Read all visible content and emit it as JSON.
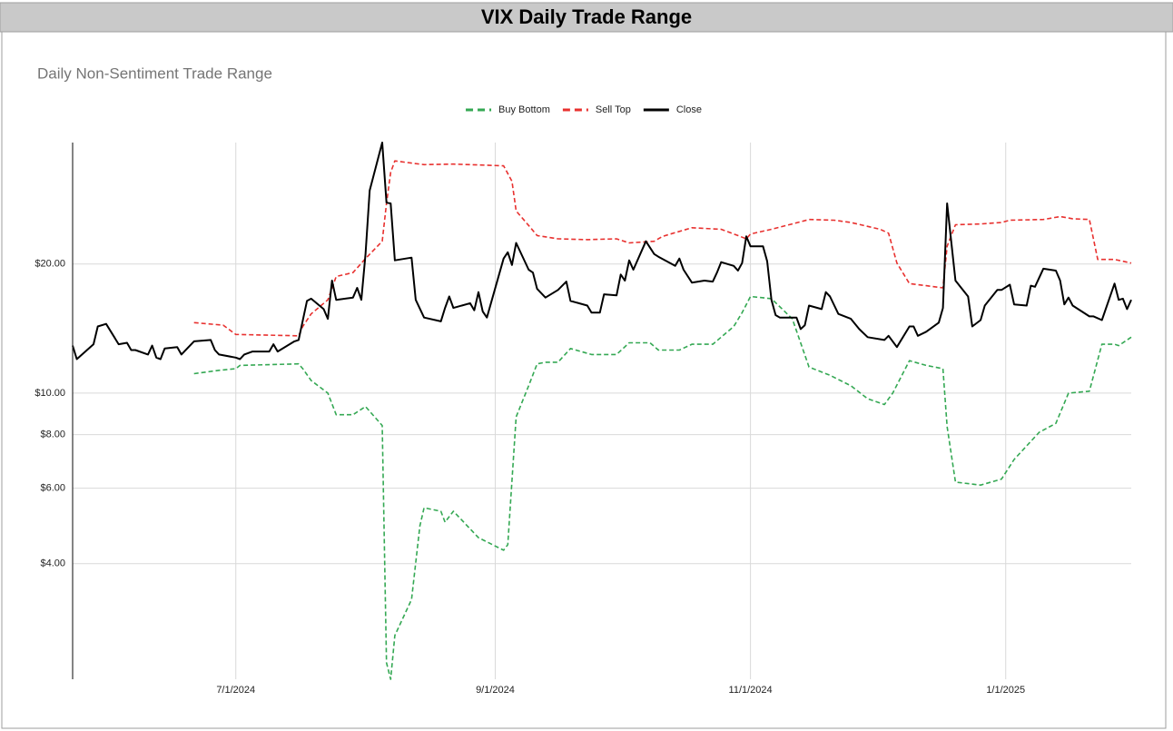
{
  "chart_data": {
    "type": "line",
    "title": "VIX Daily Trade Range",
    "subtitle": "Daily Non-Sentiment Trade Range",
    "log_scale": true,
    "grid": true,
    "legend": "top",
    "xlim": [
      "2024-05-23",
      "2025-01-31"
    ],
    "xticks": [
      {
        "value": "2024-07-01",
        "label": "7/1/2024"
      },
      {
        "value": "2024-09-01",
        "label": "9/1/2024"
      },
      {
        "value": "2024-11-01",
        "label": "11/1/2024"
      },
      {
        "value": "2025-01-01",
        "label": "1/1/2025"
      }
    ],
    "ylim": [
      2.15,
      38.4
    ],
    "yticks": [
      {
        "value": 4,
        "label": "$4.00"
      },
      {
        "value": 6,
        "label": "$6.00"
      },
      {
        "value": 8,
        "label": "$8.00"
      },
      {
        "value": 10,
        "label": "$10.00"
      },
      {
        "value": 20,
        "label": "$20.00"
      }
    ],
    "series": [
      {
        "name": "Buy Bottom",
        "color": "#34a853",
        "line_style": "dashed",
        "x": [
          "2024-06-21",
          "2024-06-27",
          "2024-07-01",
          "2024-07-02",
          "2024-07-16",
          "2024-07-17",
          "2024-07-19",
          "2024-07-23",
          "2024-07-25",
          "2024-07-29",
          "2024-08-01",
          "2024-08-05",
          "2024-08-06",
          "2024-08-07",
          "2024-08-08",
          "2024-08-12",
          "2024-08-14",
          "2024-08-15",
          "2024-08-19",
          "2024-08-20",
          "2024-08-22",
          "2024-08-28",
          "2024-09-03",
          "2024-09-04",
          "2024-09-06",
          "2024-09-09",
          "2024-09-11",
          "2024-09-13",
          "2024-09-16",
          "2024-09-19",
          "2024-09-24",
          "2024-09-30",
          "2024-10-03",
          "2024-10-08",
          "2024-10-10",
          "2024-10-15",
          "2024-10-18",
          "2024-10-23",
          "2024-10-28",
          "2024-10-30",
          "2024-11-01",
          "2024-11-06",
          "2024-11-11",
          "2024-11-15",
          "2024-11-20",
          "2024-11-25",
          "2024-11-29",
          "2024-12-03",
          "2024-12-05",
          "2024-12-09",
          "2024-12-13",
          "2024-12-17",
          "2024-12-18",
          "2024-12-20",
          "2024-12-26",
          "2024-12-31",
          "2025-01-03",
          "2025-01-09",
          "2025-01-13",
          "2025-01-16",
          "2025-01-21",
          "2025-01-24",
          "2025-01-27",
          "2025-01-28",
          "2025-01-31"
        ],
        "values": [
          11.1,
          11.3,
          11.4,
          11.6,
          11.7,
          11.4,
          10.7,
          10.0,
          8.9,
          8.9,
          9.3,
          8.4,
          2.35,
          2.15,
          2.72,
          3.3,
          4.9,
          5.4,
          5.3,
          5.0,
          5.3,
          4.6,
          4.3,
          4.43,
          8.8,
          10.4,
          11.7,
          11.8,
          11.8,
          12.7,
          12.3,
          12.3,
          13.1,
          13.1,
          12.6,
          12.6,
          13.0,
          13.0,
          14.3,
          15.4,
          16.8,
          16.6,
          14.9,
          11.5,
          11.0,
          10.4,
          9.7,
          9.4,
          10.0,
          11.9,
          11.6,
          11.4,
          8.35,
          6.2,
          6.1,
          6.3,
          7.0,
          8.1,
          8.5,
          10.0,
          10.1,
          13.0,
          13.0,
          12.9,
          13.5
        ]
      },
      {
        "name": "Sell Top",
        "color": "#e8312f",
        "line_style": "dashed",
        "x": [
          "2024-06-21",
          "2024-06-28",
          "2024-07-01",
          "2024-07-16",
          "2024-07-17",
          "2024-07-19",
          "2024-07-23",
          "2024-07-25",
          "2024-07-29",
          "2024-08-01",
          "2024-08-05",
          "2024-08-06",
          "2024-08-07",
          "2024-08-08",
          "2024-08-12",
          "2024-08-15",
          "2024-08-22",
          "2024-09-03",
          "2024-09-05",
          "2024-09-06",
          "2024-09-09",
          "2024-09-11",
          "2024-09-16",
          "2024-09-23",
          "2024-09-30",
          "2024-10-03",
          "2024-10-09",
          "2024-10-11",
          "2024-10-18",
          "2024-10-25",
          "2024-10-29",
          "2024-10-31",
          "2024-11-01",
          "2024-11-06",
          "2024-11-11",
          "2024-11-15",
          "2024-11-21",
          "2024-11-25",
          "2024-12-02",
          "2024-12-04",
          "2024-12-06",
          "2024-12-09",
          "2024-12-13",
          "2024-12-17",
          "2024-12-18",
          "2024-12-20",
          "2024-12-26",
          "2024-12-31",
          "2025-01-02",
          "2025-01-10",
          "2025-01-14",
          "2025-01-17",
          "2025-01-21",
          "2025-01-23",
          "2025-01-27",
          "2025-01-30",
          "2025-01-31"
        ],
        "values": [
          14.6,
          14.4,
          13.7,
          13.6,
          14.3,
          15.3,
          16.5,
          18.7,
          19.1,
          20.6,
          22.6,
          27.7,
          32.7,
          34.8,
          34.4,
          34.1,
          34.2,
          33.9,
          31.2,
          26.6,
          24.6,
          23.3,
          22.9,
          22.8,
          22.9,
          22.4,
          22.6,
          23.2,
          24.3,
          24.1,
          23.3,
          22.9,
          23.5,
          24.1,
          24.8,
          25.4,
          25.3,
          25.0,
          24.1,
          23.6,
          20.1,
          18.0,
          17.8,
          17.6,
          22.0,
          24.7,
          24.8,
          25.0,
          25.3,
          25.4,
          25.8,
          25.5,
          25.4,
          20.5,
          20.5,
          20.2,
          20.1
        ]
      },
      {
        "name": "Close",
        "color": "#000000",
        "line_style": "solid",
        "x": [
          "2024-05-23",
          "2024-05-24",
          "2024-05-28",
          "2024-05-29",
          "2024-05-31",
          "2024-06-03",
          "2024-06-05",
          "2024-06-06",
          "2024-06-07",
          "2024-06-10",
          "2024-06-11",
          "2024-06-12",
          "2024-06-13",
          "2024-06-14",
          "2024-06-17",
          "2024-06-18",
          "2024-06-21",
          "2024-06-25",
          "2024-06-26",
          "2024-06-27",
          "2024-07-01",
          "2024-07-02",
          "2024-07-03",
          "2024-07-05",
          "2024-07-09",
          "2024-07-10",
          "2024-07-11",
          "2024-07-15",
          "2024-07-16",
          "2024-07-18",
          "2024-07-19",
          "2024-07-22",
          "2024-07-23",
          "2024-07-24",
          "2024-07-25",
          "2024-07-29",
          "2024-07-30",
          "2024-07-31",
          "2024-08-01",
          "2024-08-02",
          "2024-08-05",
          "2024-08-06",
          "2024-08-07",
          "2024-08-08",
          "2024-08-12",
          "2024-08-13",
          "2024-08-15",
          "2024-08-19",
          "2024-08-20",
          "2024-08-21",
          "2024-08-22",
          "2024-08-26",
          "2024-08-27",
          "2024-08-28",
          "2024-08-29",
          "2024-08-30",
          "2024-09-03",
          "2024-09-04",
          "2024-09-05",
          "2024-09-06",
          "2024-09-09",
          "2024-09-10",
          "2024-09-11",
          "2024-09-13",
          "2024-09-16",
          "2024-09-18",
          "2024-09-19",
          "2024-09-23",
          "2024-09-24",
          "2024-09-26",
          "2024-09-27",
          "2024-09-30",
          "2024-10-01",
          "2024-10-02",
          "2024-10-03",
          "2024-10-04",
          "2024-10-07",
          "2024-10-09",
          "2024-10-10",
          "2024-10-14",
          "2024-10-15",
          "2024-10-16",
          "2024-10-18",
          "2024-10-21",
          "2024-10-23",
          "2024-10-24",
          "2024-10-25",
          "2024-10-28",
          "2024-10-29",
          "2024-10-30",
          "2024-10-31",
          "2024-11-01",
          "2024-11-04",
          "2024-11-05",
          "2024-11-06",
          "2024-11-07",
          "2024-11-08",
          "2024-11-12",
          "2024-11-13",
          "2024-11-14",
          "2024-11-15",
          "2024-11-18",
          "2024-11-19",
          "2024-11-20",
          "2024-11-22",
          "2024-11-25",
          "2024-11-27",
          "2024-11-29",
          "2024-12-03",
          "2024-12-04",
          "2024-12-06",
          "2024-12-09",
          "2024-12-10",
          "2024-12-11",
          "2024-12-13",
          "2024-12-16",
          "2024-12-17",
          "2024-12-18",
          "2024-12-20",
          "2024-12-23",
          "2024-12-24",
          "2024-12-26",
          "2024-12-27",
          "2024-12-30",
          "2024-12-31",
          "2025-01-02",
          "2025-01-03",
          "2025-01-06",
          "2025-01-07",
          "2025-01-08",
          "2025-01-10",
          "2025-01-13",
          "2025-01-14",
          "2025-01-15",
          "2025-01-16",
          "2025-01-17",
          "2025-01-21",
          "2025-01-22",
          "2025-01-24",
          "2025-01-27",
          "2025-01-28",
          "2025-01-29",
          "2025-01-30",
          "2025-01-31"
        ],
        "values": [
          12.9,
          12.0,
          13.0,
          14.3,
          14.5,
          13.0,
          13.1,
          12.6,
          12.6,
          12.3,
          12.9,
          12.1,
          12.0,
          12.7,
          12.8,
          12.3,
          13.2,
          13.3,
          12.6,
          12.3,
          12.1,
          12.0,
          12.3,
          12.5,
          12.5,
          13.0,
          12.5,
          13.2,
          13.3,
          16.4,
          16.6,
          15.7,
          14.9,
          18.3,
          16.5,
          16.7,
          17.6,
          16.5,
          21.1,
          29.7,
          38.4,
          27.8,
          27.7,
          20.4,
          20.7,
          16.5,
          15.0,
          14.7,
          15.8,
          16.8,
          15.8,
          16.2,
          15.6,
          17.2,
          15.5,
          15.0,
          20.6,
          21.3,
          19.9,
          22.4,
          19.4,
          19.1,
          17.5,
          16.7,
          17.4,
          18.2,
          16.4,
          16.0,
          15.4,
          15.4,
          17.0,
          16.9,
          18.9,
          18.3,
          20.4,
          19.4,
          22.6,
          21.1,
          20.8,
          19.8,
          20.6,
          19.4,
          18.1,
          18.3,
          18.2,
          19.1,
          20.2,
          19.8,
          19.3,
          20.1,
          23.2,
          22.0,
          22.0,
          20.3,
          16.5,
          15.2,
          15.0,
          15.0,
          14.1,
          14.4,
          16.0,
          15.7,
          17.2,
          16.8,
          15.3,
          14.9,
          14.1,
          13.5,
          13.3,
          13.6,
          12.8,
          14.3,
          14.3,
          13.6,
          13.9,
          14.6,
          15.8,
          27.7,
          18.3,
          16.8,
          14.3,
          14.8,
          16.0,
          17.4,
          17.4,
          17.9,
          16.1,
          16.0,
          17.8,
          17.7,
          19.5,
          19.3,
          18.3,
          16.1,
          16.7,
          16.0,
          15.1,
          15.1,
          14.8,
          18.0,
          16.5,
          16.6,
          15.7,
          16.5
        ]
      }
    ]
  }
}
